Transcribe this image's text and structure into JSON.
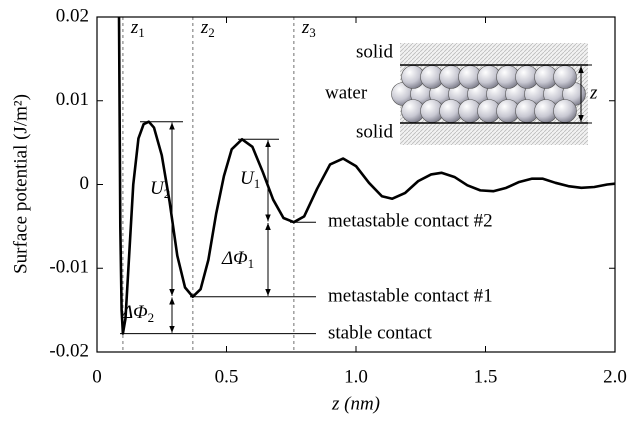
{
  "chart_data": {
    "type": "line",
    "x_label": "z (nm)",
    "y_label": "Surface potential (J/m²)",
    "x": [
      0.085,
      0.09,
      0.095,
      0.1,
      0.11,
      0.125,
      0.14,
      0.16,
      0.18,
      0.2,
      0.22,
      0.25,
      0.28,
      0.31,
      0.34,
      0.37,
      0.4,
      0.43,
      0.46,
      0.49,
      0.52,
      0.56,
      0.6,
      0.64,
      0.68,
      0.72,
      0.76,
      0.8,
      0.85,
      0.9,
      0.95,
      1.0,
      1.05,
      1.1,
      1.14,
      1.19,
      1.24,
      1.29,
      1.33,
      1.38,
      1.43,
      1.48,
      1.53,
      1.58,
      1.63,
      1.68,
      1.72,
      1.77,
      1.82,
      1.87,
      1.92,
      1.97,
      2.0
    ],
    "series": [
      {
        "color": "#000000",
        "values": [
          0.02,
          -0.005,
          -0.015,
          -0.0178,
          -0.016,
          -0.008,
          0.0,
          0.0055,
          0.0072,
          0.0075,
          0.0068,
          0.0035,
          -0.002,
          -0.0085,
          -0.0123,
          -0.0134,
          -0.0125,
          -0.009,
          -0.0035,
          0.001,
          0.0042,
          0.0054,
          0.0045,
          0.0015,
          -0.0018,
          -0.004,
          -0.0045,
          -0.0038,
          -0.0005,
          0.0024,
          0.0031,
          0.0022,
          0.0002,
          -0.0014,
          -0.0017,
          -0.001,
          0.0004,
          0.0012,
          0.0014,
          0.0009,
          -0.0001,
          -0.0007,
          -0.0008,
          -0.0004,
          0.0003,
          0.0007,
          0.0007,
          0.0002,
          -0.0002,
          -0.0004,
          -0.0003,
          0.0,
          0.0001
        ]
      }
    ],
    "xlim": [
      0,
      2
    ],
    "ylim": [
      -0.02,
      0.02
    ],
    "xticks": [
      0,
      0.5,
      {
        "value": 1,
        "label": "1.0"
      },
      1.5,
      {
        "value": 2,
        "label": "2.0"
      }
    ],
    "yticks": [
      -0.02,
      -0.01,
      0,
      0.01,
      0.02
    ],
    "vlines": [
      {
        "value": 0.1,
        "text": "z",
        "sub": "1"
      },
      {
        "value": 0.37,
        "text": "z",
        "sub": "2"
      },
      {
        "value": 0.76,
        "text": "z",
        "sub": "3"
      }
    ],
    "annotations": {
      "u2": {
        "text": "U",
        "sub": "2"
      },
      "u1": {
        "text": "U",
        "sub": "1"
      },
      "dphi1": {
        "text": "ΔΦ",
        "sub": "1"
      },
      "dphi2": {
        "text": "ΔΦ",
        "sub": "2"
      },
      "meta2": "metastable contact #2",
      "meta1": "metastable contact #1",
      "stable": "stable contact"
    },
    "inset": {
      "solid_top": "solid",
      "water": "water",
      "solid_bottom": "solid",
      "gap": "z"
    }
  }
}
